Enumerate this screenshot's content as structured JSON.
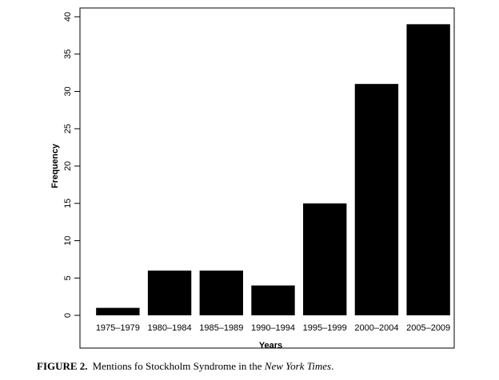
{
  "chart_data": {
    "type": "bar",
    "categories": [
      "1975–1979",
      "1980–1984",
      "1985–1989",
      "1990–1994",
      "1995–1999",
      "2000–2004",
      "2005–2009"
    ],
    "values": [
      1,
      6,
      6,
      4,
      15,
      31,
      39
    ],
    "xlabel": "Years",
    "ylabel": "Frequency",
    "ylim": [
      0,
      40
    ],
    "yticks": [
      0,
      5,
      10,
      15,
      20,
      25,
      30,
      35,
      40
    ],
    "bar_color": "#000000",
    "grid": false
  },
  "caption": {
    "figure_label": "FIGURE 2.",
    "text_before": "Mentions fo Stockholm Syndrome in the ",
    "text_italic": "New York Times",
    "text_after": "."
  }
}
